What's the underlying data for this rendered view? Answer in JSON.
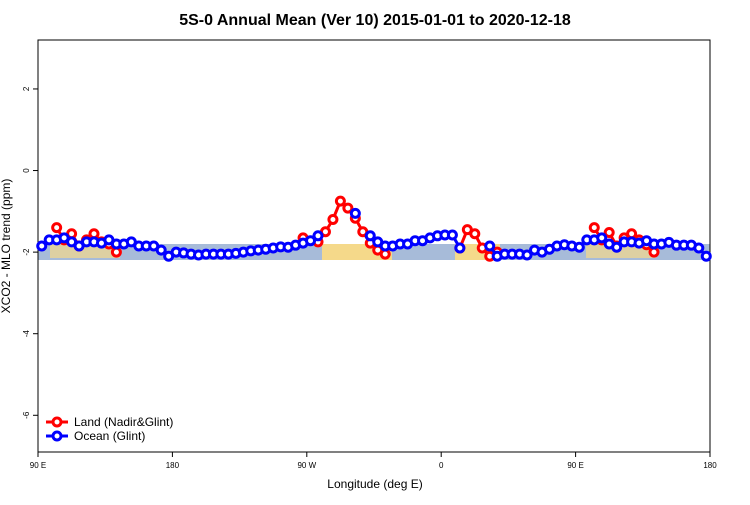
{
  "chart_data": {
    "type": "line",
    "title": "5S-0 Annual Mean (Ver 10)   2015-01-01 to 2020-12-18",
    "x_label": "Longitude (deg E)",
    "y_label": "XCO2 - MLO trend (ppm)",
    "x": [
      92.5,
      97.5,
      102.5,
      107.5,
      112.5,
      117.5,
      122.5,
      127.5,
      132.5,
      137.5,
      142.5,
      147.5,
      152.5,
      157.5,
      162.5,
      167.5,
      172.5,
      177.5,
      182.5,
      187.5,
      192.5,
      197.5,
      202.5,
      207.5,
      212.5,
      217.5,
      222.5,
      227.5,
      232.5,
      237.5,
      242.5,
      247.5,
      252.5,
      257.5,
      262.5,
      267.5,
      272.5,
      277.5,
      282.5,
      287.5,
      292.5,
      297.5,
      302.5,
      307.5,
      312.5,
      317.5,
      322.5,
      327.5,
      332.5,
      337.5,
      342.5,
      347.5,
      352.5,
      357.5,
      362.5,
      367.5,
      372.5,
      377.5,
      382.5,
      387.5,
      392.5,
      397.5,
      402.5,
      407.5,
      412.5,
      417.5,
      422.5,
      427.5,
      432.5,
      437.5,
      442.5,
      447.5,
      452.5,
      457.5,
      462.5,
      467.5,
      472.5,
      477.5,
      482.5,
      487.5,
      492.5,
      497.5,
      502.5,
      507.5,
      512.5,
      517.5,
      522.5,
      527.5,
      532.5,
      537.5
    ],
    "series": [
      {
        "name": "Land (Nadir&Glint)",
        "color": "#ff0000",
        "values": [
          null,
          null,
          -1.4,
          -1.7,
          -1.55,
          -1.85,
          -1.7,
          -1.55,
          -1.75,
          -1.8,
          -2.0,
          null,
          null,
          null,
          null,
          null,
          null,
          null,
          null,
          null,
          null,
          null,
          null,
          null,
          null,
          null,
          null,
          null,
          null,
          null,
          null,
          null,
          null,
          null,
          null,
          -1.65,
          null,
          -1.75,
          -1.5,
          -1.2,
          -0.75,
          -0.92,
          -1.17,
          -1.5,
          -1.78,
          -1.95,
          -2.05,
          null,
          null,
          null,
          null,
          null,
          null,
          null,
          null,
          null,
          -1.9,
          -1.45,
          -1.55,
          -1.9,
          -2.1,
          -2.0,
          null,
          null,
          null,
          null,
          null,
          null,
          null,
          null,
          null,
          null,
          null,
          null,
          -1.4,
          -1.7,
          -1.52,
          -1.85,
          -1.65,
          -1.55,
          -1.7,
          -1.82,
          -2.0,
          null,
          null,
          null,
          null,
          null,
          null,
          null
        ]
      },
      {
        "name": "Ocean (Glint)",
        "color": "#0000ff",
        "values": [
          -1.85,
          -1.7,
          -1.7,
          -1.65,
          -1.75,
          -1.85,
          -1.75,
          -1.75,
          -1.78,
          -1.7,
          -1.8,
          -1.8,
          -1.75,
          -1.85,
          -1.85,
          -1.85,
          -1.95,
          -2.1,
          -2.0,
          -2.02,
          -2.05,
          -2.07,
          -2.05,
          -2.05,
          -2.05,
          -2.05,
          -2.03,
          -2.0,
          -1.97,
          -1.95,
          -1.93,
          -1.9,
          -1.87,
          -1.88,
          -1.83,
          -1.78,
          -1.72,
          -1.6,
          null,
          null,
          null,
          null,
          -1.05,
          null,
          -1.6,
          -1.75,
          -1.85,
          -1.85,
          -1.8,
          -1.8,
          -1.72,
          -1.72,
          -1.65,
          -1.6,
          -1.58,
          -1.58,
          -1.9,
          null,
          null,
          null,
          -1.85,
          -2.1,
          -2.05,
          -2.05,
          -2.05,
          -2.07,
          -1.95,
          -2.0,
          -1.93,
          -1.85,
          -1.82,
          -1.85,
          -1.88,
          -1.7,
          -1.7,
          -1.65,
          -1.8,
          -1.88,
          -1.75,
          -1.75,
          -1.78,
          -1.72,
          -1.8,
          -1.8,
          -1.76,
          -1.83,
          -1.83,
          -1.83,
          -1.9,
          -2.1
        ]
      }
    ],
    "xlim": [
      90,
      540
    ],
    "xticks": [
      {
        "value": 90,
        "label": "90 E"
      },
      180,
      {
        "value": 270,
        "label": "90 W"
      },
      {
        "value": 360,
        "label": "0"
      },
      {
        "value": 450,
        "label": "90 E"
      },
      {
        "value": 540,
        "label": "180"
      }
    ],
    "ylim": [
      -6.9,
      3.2
    ],
    "yticks": [
      -6,
      -4,
      -2,
      0,
      2
    ],
    "legend": "bottom-left"
  }
}
